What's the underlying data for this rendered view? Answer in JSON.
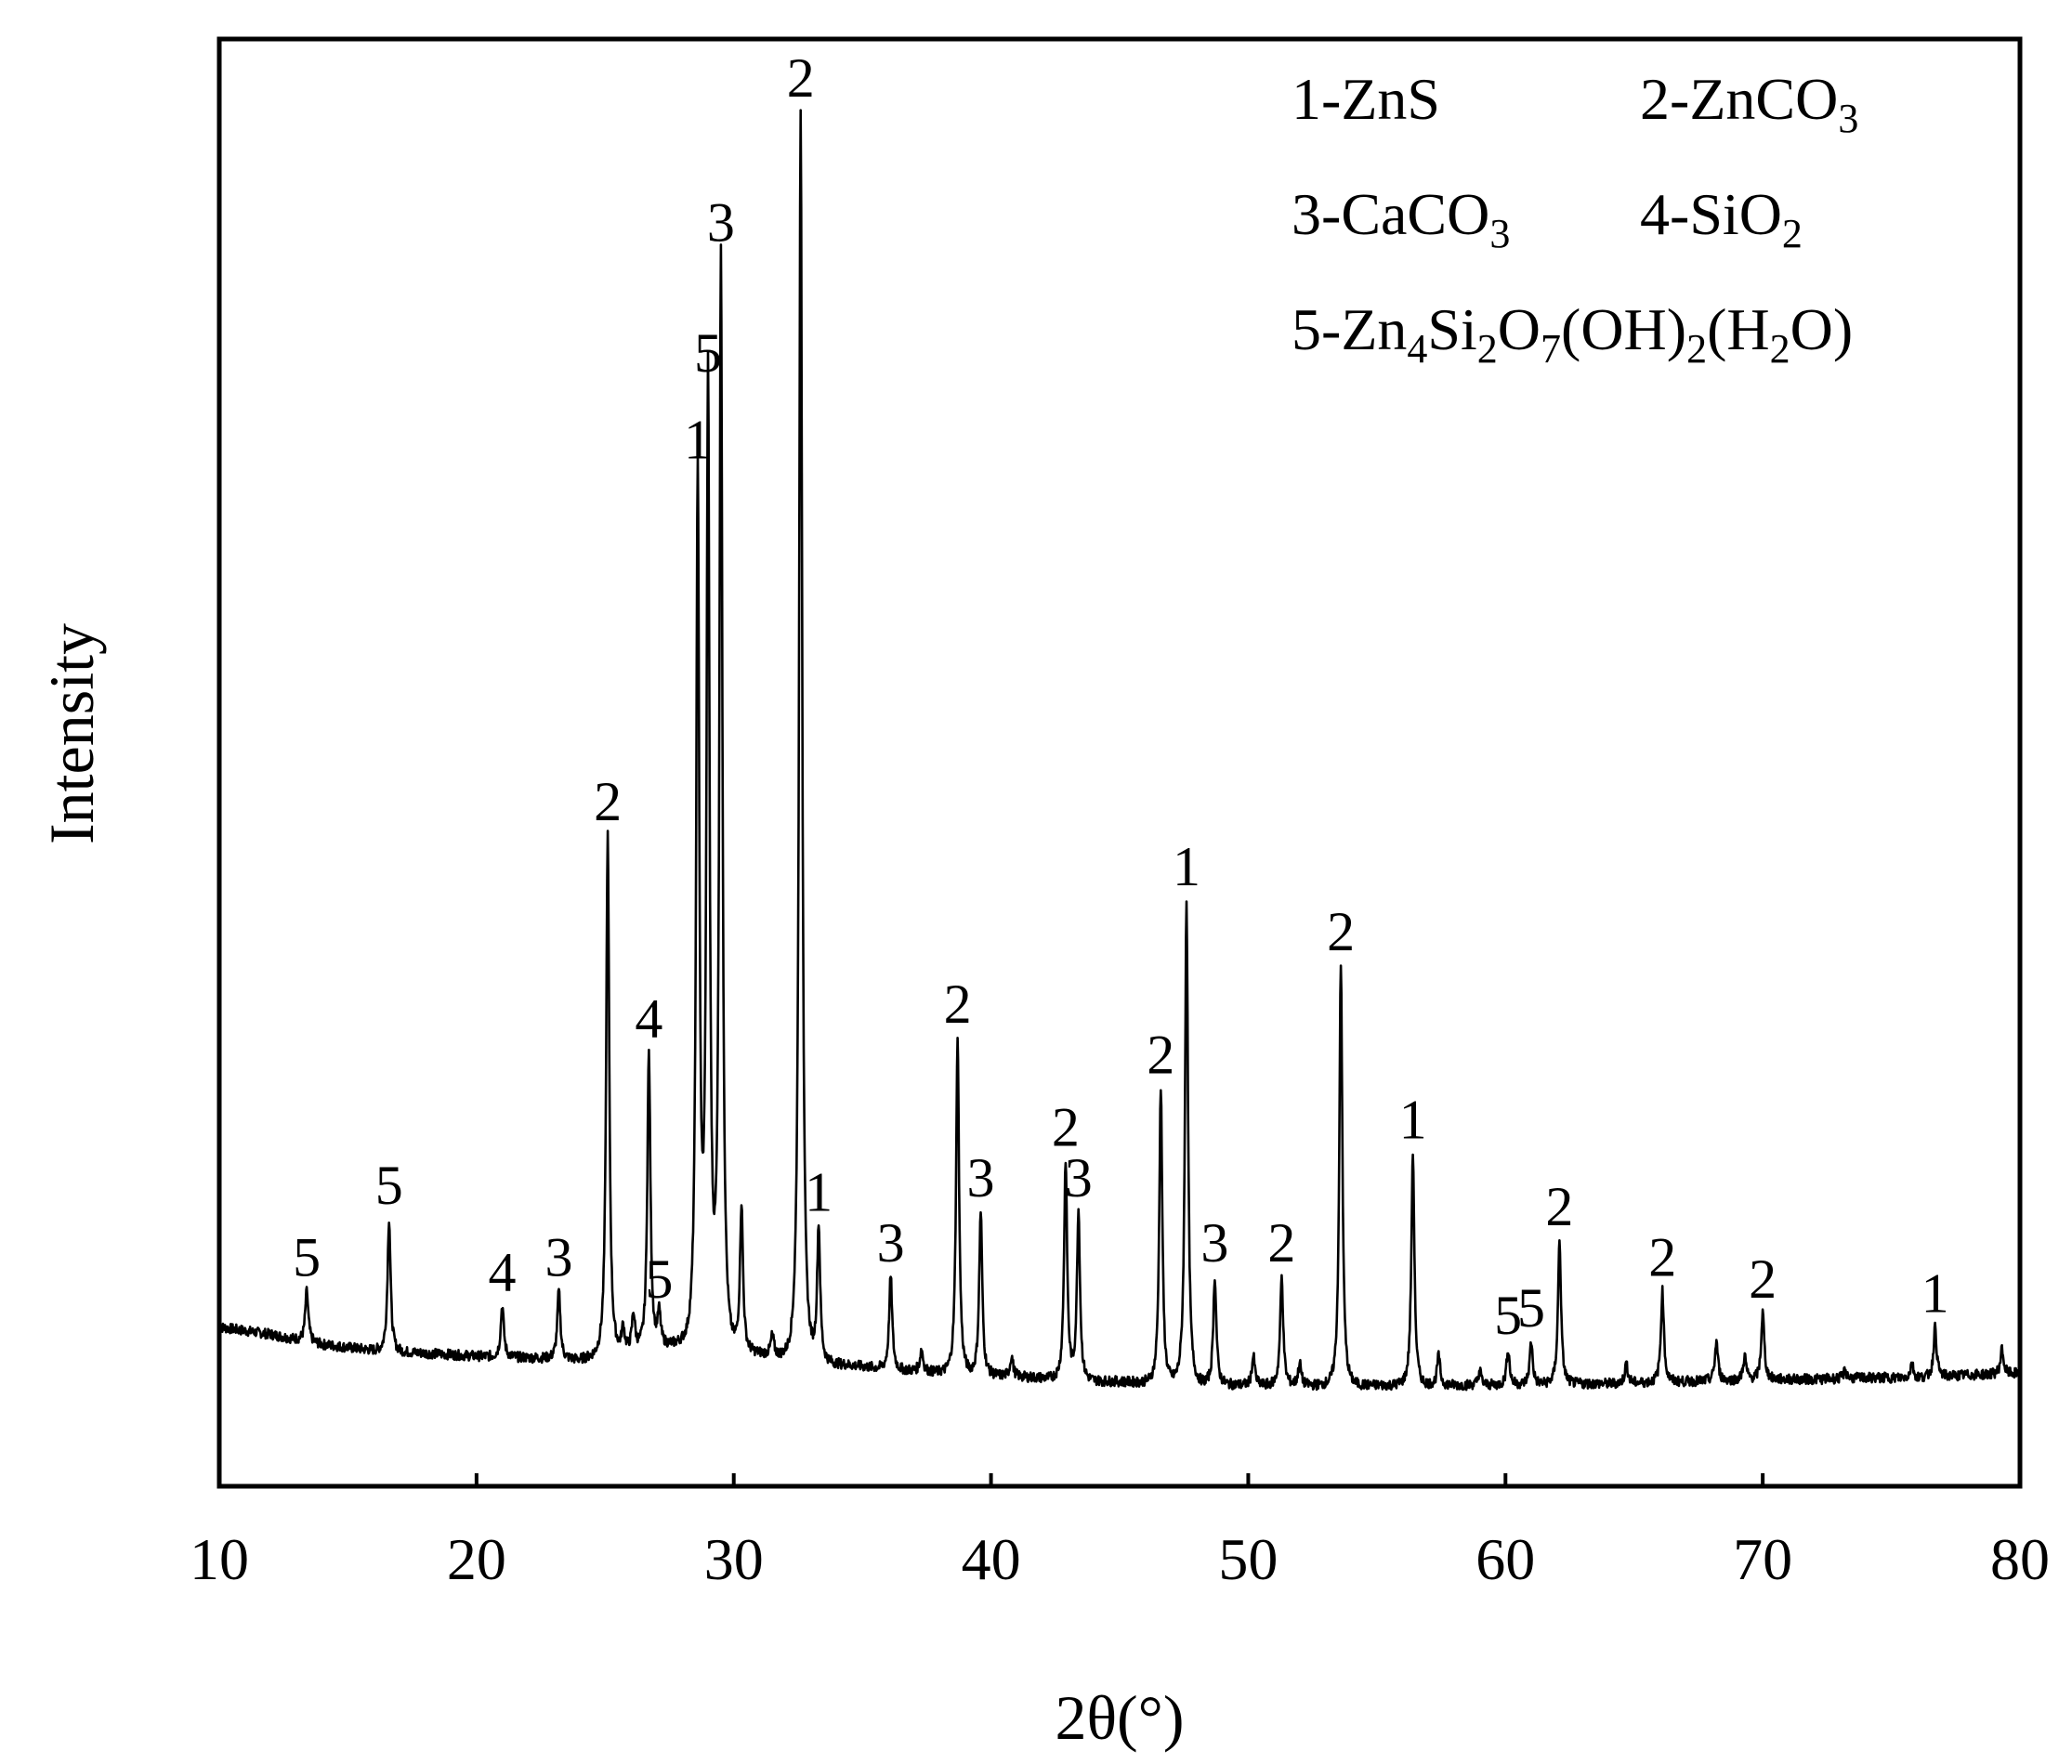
{
  "chart_data": {
    "type": "line",
    "title": "",
    "xlabel": "2θ(°)",
    "ylabel": "Intensity",
    "xlim": [
      10,
      80
    ],
    "ylim": [
      0,
      100
    ],
    "x_ticks": [
      10,
      20,
      30,
      40,
      50,
      60,
      70,
      80
    ],
    "x_tick_labels": [
      "10",
      "20",
      "30",
      "40",
      "50",
      "60",
      "70",
      "80"
    ],
    "y_ticks_shown": false,
    "grid": false,
    "legend_position": "top-right",
    "legend": [
      {
        "key": "1",
        "text": "1-ZnS",
        "parts": [
          [
            "1-ZnS",
            ""
          ]
        ]
      },
      {
        "key": "2",
        "text": "2-ZnCO3",
        "parts": [
          [
            "2-ZnCO",
            ""
          ],
          [
            "3",
            "sub"
          ]
        ]
      },
      {
        "key": "3",
        "text": "3-CaCO3",
        "parts": [
          [
            "3-CaCO",
            ""
          ],
          [
            "3",
            "sub"
          ]
        ]
      },
      {
        "key": "4",
        "text": "4-SiO2",
        "parts": [
          [
            "4-SiO",
            ""
          ],
          [
            "2",
            "sub"
          ]
        ]
      },
      {
        "key": "5",
        "text": "5-Zn4Si2O7(OH)2(H2O)",
        "parts": [
          [
            "5-Zn",
            ""
          ],
          [
            "4",
            "sub"
          ],
          [
            "Si",
            ""
          ],
          [
            "2",
            "sub"
          ],
          [
            "O",
            ""
          ],
          [
            "7",
            "sub"
          ],
          [
            "(OH)",
            ""
          ],
          [
            "2",
            "sub"
          ],
          [
            "(H",
            ""
          ],
          [
            "2",
            "sub"
          ],
          [
            "O)",
            ""
          ]
        ]
      }
    ],
    "baseline": [
      [
        10.0,
        11.0
      ],
      [
        12.0,
        10.5
      ],
      [
        14.0,
        9.8
      ],
      [
        16.0,
        9.4
      ],
      [
        18.0,
        9.2
      ],
      [
        20.0,
        9.0
      ],
      [
        22.0,
        8.9
      ],
      [
        24.0,
        8.8
      ],
      [
        26.0,
        9.5
      ],
      [
        28.0,
        10.0
      ],
      [
        30.0,
        9.5
      ],
      [
        32.0,
        9.0
      ],
      [
        34.0,
        8.5
      ],
      [
        36.0,
        8.1
      ],
      [
        38.0,
        7.9
      ],
      [
        40.0,
        7.7
      ],
      [
        42.0,
        7.5
      ],
      [
        44.0,
        7.3
      ],
      [
        46.0,
        7.2
      ],
      [
        48.0,
        7.1
      ],
      [
        50.0,
        7.0
      ],
      [
        52.0,
        7.0
      ],
      [
        54.0,
        7.0
      ],
      [
        56.0,
        7.0
      ],
      [
        58.0,
        7.0
      ],
      [
        60.0,
        7.0
      ],
      [
        62.0,
        7.1
      ],
      [
        64.0,
        7.1
      ],
      [
        66.0,
        7.2
      ],
      [
        68.0,
        7.3
      ],
      [
        70.0,
        7.4
      ],
      [
        72.0,
        7.4
      ],
      [
        74.0,
        7.5
      ],
      [
        76.0,
        7.5
      ],
      [
        78.0,
        7.7
      ],
      [
        80.0,
        7.8
      ]
    ],
    "peaks": [
      {
        "x": 13.4,
        "y": 13.5,
        "label": "5"
      },
      {
        "x": 16.6,
        "y": 18.5,
        "label": "5"
      },
      {
        "x": 21.0,
        "y": 12.5,
        "label": "4"
      },
      {
        "x": 23.2,
        "y": 13.5,
        "label": "3"
      },
      {
        "x": 25.1,
        "y": 45.0,
        "label": "2"
      },
      {
        "x": 26.7,
        "y": 30.0,
        "label": "4"
      },
      {
        "x": 27.1,
        "y": 12.0,
        "label": "5"
      },
      {
        "x": 28.6,
        "y": 70.0,
        "label": "1"
      },
      {
        "x": 29.0,
        "y": 76.0,
        "label": "5"
      },
      {
        "x": 29.5,
        "y": 85.0,
        "label": "3"
      },
      {
        "x": 30.3,
        "y": 19.5,
        "label": ""
      },
      {
        "x": 32.6,
        "y": 95.0,
        "label": "2"
      },
      {
        "x": 33.3,
        "y": 18.0,
        "label": "1"
      },
      {
        "x": 36.1,
        "y": 14.5,
        "label": "3"
      },
      {
        "x": 38.7,
        "y": 31.0,
        "label": "2"
      },
      {
        "x": 39.6,
        "y": 19.0,
        "label": "3"
      },
      {
        "x": 42.9,
        "y": 22.5,
        "label": "2"
      },
      {
        "x": 43.4,
        "y": 19.0,
        "label": "3"
      },
      {
        "x": 46.6,
        "y": 27.5,
        "label": "2"
      },
      {
        "x": 47.6,
        "y": 40.5,
        "label": "1"
      },
      {
        "x": 48.7,
        "y": 14.5,
        "label": "3"
      },
      {
        "x": 51.3,
        "y": 14.5,
        "label": "2"
      },
      {
        "x": 53.6,
        "y": 36.0,
        "label": "2"
      },
      {
        "x": 56.4,
        "y": 23.0,
        "label": "1"
      },
      {
        "x": 60.1,
        "y": 9.5,
        "label": "5"
      },
      {
        "x": 61.0,
        "y": 10.0,
        "label": "5"
      },
      {
        "x": 62.1,
        "y": 17.0,
        "label": "2"
      },
      {
        "x": 66.1,
        "y": 13.5,
        "label": "2"
      },
      {
        "x": 70.0,
        "y": 12.0,
        "label": "2"
      },
      {
        "x": 76.7,
        "y": 11.0,
        "label": "1"
      }
    ],
    "minor_peaks": [
      {
        "x": 25.7,
        "y": 11.0
      },
      {
        "x": 26.1,
        "y": 12.0
      },
      {
        "x": 31.5,
        "y": 10.5
      },
      {
        "x": 37.3,
        "y": 9.5
      },
      {
        "x": 40.8,
        "y": 9.0
      },
      {
        "x": 50.2,
        "y": 9.0
      },
      {
        "x": 52.0,
        "y": 8.5
      },
      {
        "x": 57.4,
        "y": 9.0
      },
      {
        "x": 59.0,
        "y": 8.0
      },
      {
        "x": 64.7,
        "y": 8.5
      },
      {
        "x": 68.2,
        "y": 10.0
      },
      {
        "x": 69.3,
        "y": 9.0
      },
      {
        "x": 73.2,
        "y": 8.0
      },
      {
        "x": 75.8,
        "y": 8.5
      },
      {
        "x": 79.3,
        "y": 9.5
      }
    ]
  }
}
